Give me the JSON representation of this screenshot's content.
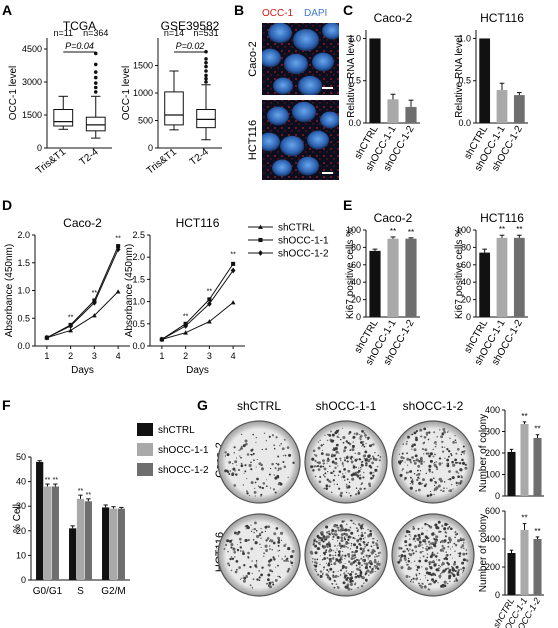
{
  "panel_letters": [
    "A",
    "B",
    "C",
    "D",
    "E",
    "F",
    "G"
  ],
  "micro": {
    "channel_labels": [
      "OCC-1",
      "DAPI"
    ],
    "channel_colors": [
      "#d11a1a",
      "#3d79c8"
    ],
    "rows": [
      "Caco-2",
      "HCT116"
    ]
  },
  "colony": {
    "columns": [
      "shCTRL",
      "shOCC-1-1",
      "shOCC-1-2"
    ],
    "rows": [
      "Caco-2",
      "HCT116"
    ]
  },
  "colors": {
    "black": "#111111",
    "light_gray": "#a9a9a9",
    "dark_gray": "#6e6e6e"
  },
  "chart_data": [
    {
      "id": "A1",
      "type": "box",
      "title": "TCGA",
      "ylabel": "OCC-1 level",
      "categories": [
        "Tris&T1",
        "T2-4"
      ],
      "ylim": [
        0,
        5000
      ],
      "yticks": [
        0,
        1500,
        3000,
        4500
      ],
      "n_labels": [
        "n=11",
        "n=364"
      ],
      "p_label": "P=0.04",
      "boxes": [
        {
          "whislo": 850,
          "q1": 1000,
          "med": 1200,
          "q3": 1750,
          "whishi": 2350,
          "fliers": []
        },
        {
          "whislo": 450,
          "q1": 780,
          "med": 1050,
          "q3": 1400,
          "whishi": 2350,
          "fliers": [
            2550,
            2750,
            2950,
            3200,
            3450,
            3800,
            4300
          ]
        }
      ]
    },
    {
      "id": "A2",
      "type": "box",
      "title": "GSE39582",
      "ylabel": "OCC-1 level",
      "categories": [
        "Tris&T1",
        "T2-4"
      ],
      "ylim": [
        0,
        2000
      ],
      "yticks": [
        0,
        500,
        1000,
        1500
      ],
      "n_labels": [
        "n=14",
        "n=531"
      ],
      "p_label": "P=0.02",
      "boxes": [
        {
          "whislo": 330,
          "q1": 420,
          "med": 600,
          "q3": 1020,
          "whishi": 1400,
          "fliers": []
        },
        {
          "whislo": 150,
          "q1": 370,
          "med": 520,
          "q3": 700,
          "whishi": 1150,
          "fliers": [
            1200,
            1260,
            1320,
            1400,
            1480,
            1550,
            1620,
            1750
          ]
        }
      ]
    },
    {
      "id": "C1",
      "type": "bar",
      "title": "Caco-2",
      "ylabel": "Relative RNA level",
      "categories": [
        "shCTRL",
        "shOCC-1-1",
        "shOCC-1-2"
      ],
      "values": [
        1.0,
        0.28,
        0.19
      ],
      "errors": [
        0,
        0.06,
        0.08
      ],
      "sig": [
        "",
        "",
        ""
      ],
      "ylim": [
        0,
        1.1
      ],
      "yticks": [
        0.0,
        0.5,
        1.0
      ],
      "tick_labels": [
        "0.0",
        "0.5",
        "1.0"
      ],
      "colors": [
        "#111111",
        "#a9a9a9",
        "#6e6e6e"
      ]
    },
    {
      "id": "C2",
      "type": "bar",
      "title": "HCT116",
      "ylabel": "Relative RNA level",
      "categories": [
        "shCTRL",
        "shOCC-1-1",
        "shOCC-1-2"
      ],
      "values": [
        1.0,
        0.39,
        0.33
      ],
      "errors": [
        0,
        0.08,
        0.03
      ],
      "sig": [
        "",
        "",
        ""
      ],
      "ylim": [
        0,
        1.1
      ],
      "yticks": [
        0.0,
        0.5,
        1.0
      ],
      "tick_labels": [
        "0.0",
        "0.5",
        "1.0"
      ],
      "colors": [
        "#111111",
        "#a9a9a9",
        "#6e6e6e"
      ]
    },
    {
      "id": "D1",
      "type": "line",
      "title": "Caco-2",
      "xlabel": "Days",
      "ylabel": "Absorbance (450nm)",
      "x": [
        1,
        2,
        3,
        4
      ],
      "ylim": [
        0,
        2.0
      ],
      "yticks": [
        0.0,
        0.5,
        1.0,
        1.5,
        2.0
      ],
      "tick_labels": [
        "0.0",
        "0.5",
        "1.0",
        "1.5",
        "2.0"
      ],
      "series": [
        {
          "name": "shCTRL",
          "values": [
            0.15,
            0.28,
            0.55,
            0.98
          ],
          "marker": "triangle"
        },
        {
          "name": "shOCC-1-1",
          "values": [
            0.15,
            0.38,
            0.82,
            1.8
          ],
          "marker": "square"
        },
        {
          "name": "shOCC-1-2",
          "values": [
            0.15,
            0.36,
            0.78,
            1.74
          ],
          "marker": "diamond"
        }
      ],
      "sig_marks": [
        {
          "x": 2,
          "y": 0.48
        },
        {
          "x": 3,
          "y": 0.92
        },
        {
          "x": 4,
          "y": 1.9
        }
      ],
      "sig_text": "**"
    },
    {
      "id": "D2",
      "type": "line",
      "title": "HCT116",
      "xlabel": "Days",
      "ylabel": "Absorbance (450nm)",
      "x": [
        1,
        2,
        3,
        4
      ],
      "ylim": [
        0,
        2.5
      ],
      "yticks": [
        0.0,
        0.5,
        1.0,
        1.5,
        2.0,
        2.5
      ],
      "tick_labels": [
        "0.0",
        "0.5",
        "1.0",
        "1.5",
        "2.0",
        "2.5"
      ],
      "series": [
        {
          "name": "shCTRL",
          "values": [
            0.15,
            0.3,
            0.55,
            0.98
          ],
          "marker": "triangle"
        },
        {
          "name": "shOCC-1-1",
          "values": [
            0.15,
            0.5,
            1.05,
            1.85
          ],
          "marker": "square"
        },
        {
          "name": "shOCC-1-2",
          "values": [
            0.15,
            0.45,
            0.95,
            1.7
          ],
          "marker": "diamond"
        }
      ],
      "sig_marks": [
        {
          "x": 2,
          "y": 0.62
        },
        {
          "x": 3,
          "y": 1.18
        },
        {
          "x": 4,
          "y": 2.02
        }
      ],
      "sig_text": "**"
    },
    {
      "id": "E1",
      "type": "bar",
      "title": "Caco-2",
      "ylabel": "Ki67 positive cells %",
      "categories": [
        "shCTRL",
        "shOCC-1-1",
        "shOCC-1-2"
      ],
      "values": [
        76,
        90,
        90
      ],
      "errors": [
        2,
        2,
        1
      ],
      "sig": [
        "",
        "**",
        "**"
      ],
      "ylim": [
        0,
        100
      ],
      "yticks": [
        0,
        20,
        40,
        60,
        80,
        100
      ],
      "tick_labels": [
        "0",
        "20",
        "40",
        "60",
        "80",
        "100"
      ],
      "colors": [
        "#111111",
        "#a9a9a9",
        "#6e6e6e"
      ]
    },
    {
      "id": "E2",
      "type": "bar",
      "title": "HCT116",
      "ylabel": "Ki67 positive cells %",
      "categories": [
        "shCTRL",
        "shOCC-1-1",
        "shOCC-1-2"
      ],
      "values": [
        74,
        91,
        91
      ],
      "errors": [
        4,
        3,
        3
      ],
      "sig": [
        "",
        "**",
        "**"
      ],
      "ylim": [
        0,
        100
      ],
      "yticks": [
        0,
        20,
        40,
        60,
        80,
        100
      ],
      "tick_labels": [
        "0",
        "20",
        "40",
        "60",
        "80",
        "100"
      ],
      "colors": [
        "#111111",
        "#a9a9a9",
        "#6e6e6e"
      ]
    },
    {
      "id": "F",
      "type": "grouped_bar",
      "ylabel": "% Cell",
      "categories": [
        "G0/G1",
        "S",
        "G2/M"
      ],
      "ylim": [
        0,
        50
      ],
      "yticks": [
        0,
        10,
        20,
        30,
        40,
        50
      ],
      "tick_labels": [
        "0",
        "10",
        "20",
        "30",
        "40",
        "50"
      ],
      "series": [
        {
          "name": "shCTRL",
          "values": [
            48,
            21,
            29.5
          ],
          "errors": [
            0.5,
            1,
            1
          ],
          "color": "#111111"
        },
        {
          "name": "shOCC-1-1",
          "values": [
            38,
            33,
            29
          ],
          "errors": [
            1,
            1.5,
            0.8
          ],
          "color": "#a9a9a9"
        },
        {
          "name": "shOCC-1-2",
          "values": [
            38,
            32,
            29
          ],
          "errors": [
            1,
            1,
            0.5
          ],
          "color": "#6e6e6e"
        }
      ],
      "sig": [
        [
          "",
          "**",
          "**"
        ],
        [
          "",
          "**",
          "**"
        ],
        [
          "",
          "",
          ""
        ]
      ]
    },
    {
      "id": "G1",
      "type": "bar",
      "ylabel": "Number of colony",
      "categories": [
        "shCTRL",
        "shOCC-1-1",
        "shOCC-1-2"
      ],
      "values": [
        205,
        335,
        270
      ],
      "errors": [
        12,
        10,
        15
      ],
      "sig": [
        "",
        "**",
        "**"
      ],
      "ylim": [
        0,
        400
      ],
      "yticks": [
        0,
        100,
        200,
        300,
        400
      ],
      "tick_labels": [
        "0",
        "100",
        "200",
        "300",
        "400"
      ],
      "colors": [
        "#111111",
        "#a9a9a9",
        "#6e6e6e"
      ],
      "show_xlabels": false
    },
    {
      "id": "G2",
      "type": "bar",
      "ylabel": "Number of colony",
      "categories": [
        "shCTRL",
        "shOCC-1-1",
        "shOCC-1-2"
      ],
      "values": [
        300,
        465,
        400
      ],
      "errors": [
        20,
        45,
        15
      ],
      "sig": [
        "",
        "**",
        "**"
      ],
      "ylim": [
        0,
        600
      ],
      "yticks": [
        0,
        200,
        400,
        600
      ],
      "tick_labels": [
        "0",
        "200",
        "400",
        "600"
      ],
      "colors": [
        "#111111",
        "#a9a9a9",
        "#6e6e6e"
      ],
      "show_xlabels": true
    }
  ]
}
